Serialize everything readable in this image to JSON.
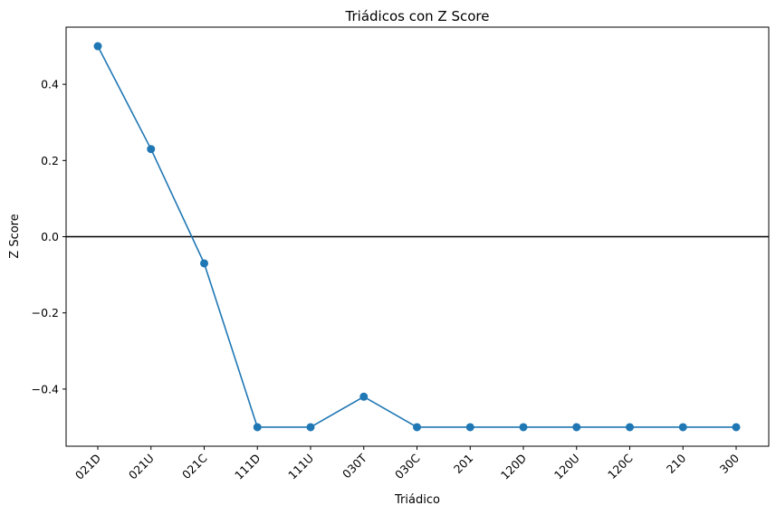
{
  "chart_data": {
    "type": "line",
    "title": "Triádicos con Z Score",
    "xlabel": "Triádico",
    "ylabel": "Z Score",
    "categories": [
      "021D",
      "021U",
      "021C",
      "111D",
      "111U",
      "030T",
      "030C",
      "201",
      "120D",
      "120U",
      "120C",
      "210",
      "300"
    ],
    "series": [
      {
        "values": [
          0.5,
          0.23,
          -0.07,
          -0.5,
          -0.5,
          -0.42,
          -0.5,
          -0.5,
          -0.5,
          -0.5,
          -0.5,
          -0.5,
          -0.5
        ],
        "color": "#1f77b4",
        "marker": "circle"
      }
    ],
    "ylim": [
      -0.55,
      0.55
    ],
    "yticks": [
      -0.4,
      -0.2,
      0.0,
      0.2,
      0.4
    ],
    "ytick_labels": [
      "−0.4",
      "−0.2",
      "0.0",
      "0.2",
      "0.4"
    ],
    "reference_line": {
      "y": 0,
      "color": "#000000"
    },
    "grid": false,
    "legend": false
  }
}
